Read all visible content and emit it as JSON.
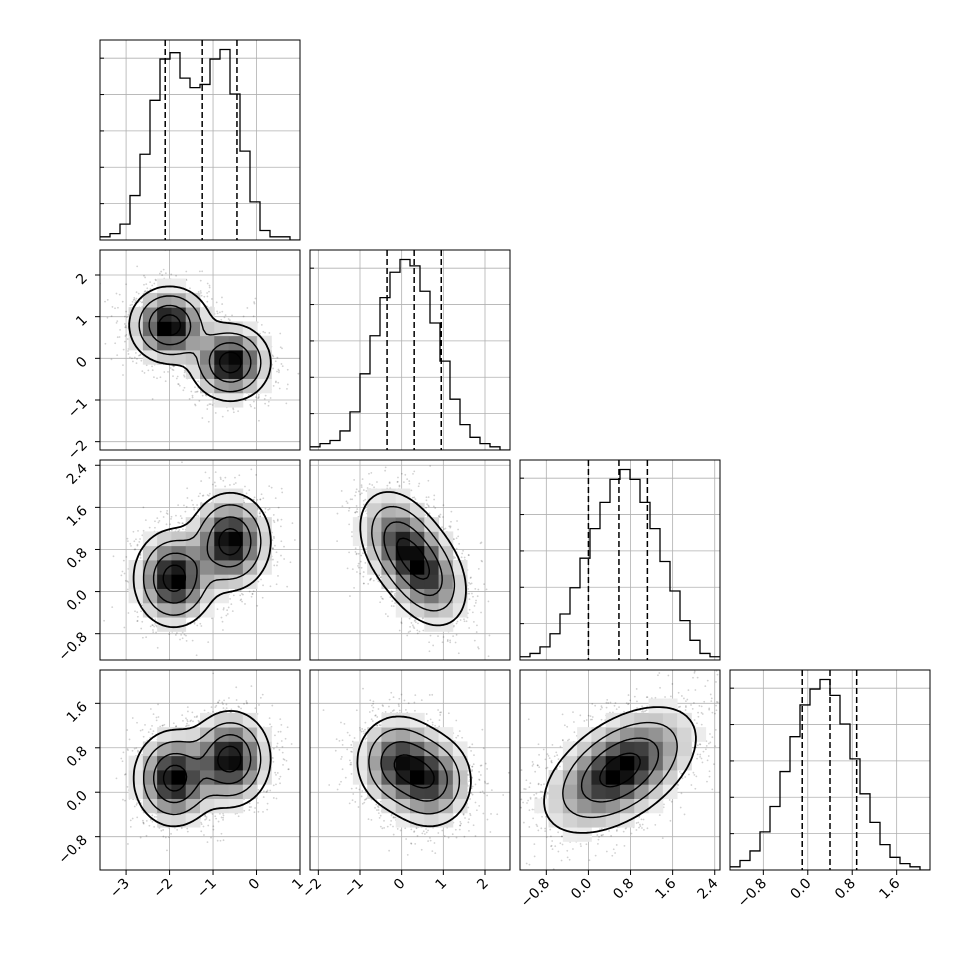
{
  "chart_data": {
    "type": "corner",
    "title": "",
    "grid": true,
    "dimensions": [
      {
        "index": 0,
        "label": "",
        "range": [
          -3.6,
          1.0
        ],
        "ticks": [
          -3,
          -2,
          -1,
          0,
          1
        ],
        "tick_labels": [
          "−3",
          "−2",
          "−1",
          "0",
          "1"
        ],
        "quantiles": [
          -2.1,
          -1.25,
          -0.45
        ]
      },
      {
        "index": 1,
        "label": "",
        "range": [
          -2.2,
          2.6
        ],
        "ticks": [
          -2,
          -1,
          0,
          1,
          2
        ],
        "tick_labels": [
          "−2",
          "−1",
          "0",
          "1",
          "2"
        ],
        "quantiles": [
          -0.35,
          0.3,
          0.95
        ]
      },
      {
        "index": 2,
        "label": "",
        "range": [
          -1.3,
          2.5
        ],
        "ticks": [
          -0.8,
          0.0,
          0.8,
          1.6,
          2.4
        ],
        "tick_labels": [
          "−0.8",
          "0.0",
          "0.8",
          "1.6",
          "2.4"
        ],
        "quantiles": [
          0.0,
          0.58,
          1.12
        ]
      },
      {
        "index": 3,
        "label": "",
        "range": [
          -1.4,
          2.2
        ],
        "ticks": [
          -0.8,
          0.0,
          0.8,
          1.6
        ],
        "tick_labels": [
          "−0.8",
          "0.0",
          "0.8",
          "1.6"
        ],
        "quantiles": [
          -0.1,
          0.4,
          0.88
        ]
      }
    ],
    "histograms": [
      {
        "dim": 0,
        "edges_start": -3.6,
        "bin_width": 0.23,
        "counts": [
          1,
          2,
          5,
          14,
          27,
          44,
          57,
          59,
          51,
          48,
          49,
          57,
          60,
          46,
          28,
          12,
          3,
          1,
          1,
          0
        ]
      },
      {
        "dim": 1,
        "edges_start": -2.2,
        "bin_width": 0.24,
        "counts": [
          1,
          2,
          3,
          6,
          12,
          24,
          36,
          48,
          56,
          60,
          58,
          50,
          40,
          28,
          16,
          8,
          4,
          2,
          1,
          0
        ]
      },
      {
        "dim": 2,
        "edges_start": -1.3,
        "bin_width": 0.19,
        "counts": [
          1,
          2,
          4,
          8,
          14,
          22,
          31,
          40,
          48,
          55,
          58,
          55,
          48,
          40,
          30,
          21,
          12,
          6,
          2,
          1
        ]
      },
      {
        "dim": 3,
        "edges_start": -1.4,
        "bin_width": 0.18,
        "counts": [
          1,
          3,
          6,
          12,
          20,
          31,
          42,
          52,
          57,
          60,
          55,
          46,
          35,
          24,
          15,
          8,
          4,
          2,
          1,
          0
        ]
      }
    ],
    "pair_panels": [
      {
        "x_dim": 0,
        "y_dim": 1,
        "modes": [
          [
            -2.0,
            0.8
          ],
          [
            -0.6,
            -0.1
          ]
        ],
        "spread": [
          0.45,
          0.45
        ],
        "corr": 0.0
      },
      {
        "x_dim": 0,
        "y_dim": 2,
        "modes": [
          [
            -1.9,
            0.25
          ],
          [
            -0.6,
            0.95
          ]
        ],
        "spread": [
          0.45,
          0.45
        ],
        "corr": 0.0
      },
      {
        "x_dim": 1,
        "y_dim": 2,
        "modes": [
          [
            -0.05,
            0.95
          ],
          [
            0.6,
            0.3
          ]
        ],
        "spread": [
          0.5,
          0.5
        ],
        "corr": -0.3
      },
      {
        "x_dim": 0,
        "y_dim": 3,
        "modes": [
          [
            -1.9,
            0.25
          ],
          [
            -0.6,
            0.6
          ]
        ],
        "spread": [
          0.45,
          0.42
        ],
        "corr": 0.0
      },
      {
        "x_dim": 1,
        "y_dim": 3,
        "modes": [
          [
            -0.1,
            0.55
          ],
          [
            0.7,
            0.2
          ]
        ],
        "spread": [
          0.5,
          0.42
        ],
        "corr": 0.0
      },
      {
        "x_dim": 2,
        "y_dim": 3,
        "modes": [
          [
            0.6,
            0.4
          ]
        ],
        "spread": [
          0.7,
          0.55
        ],
        "corr": 0.5
      }
    ]
  }
}
